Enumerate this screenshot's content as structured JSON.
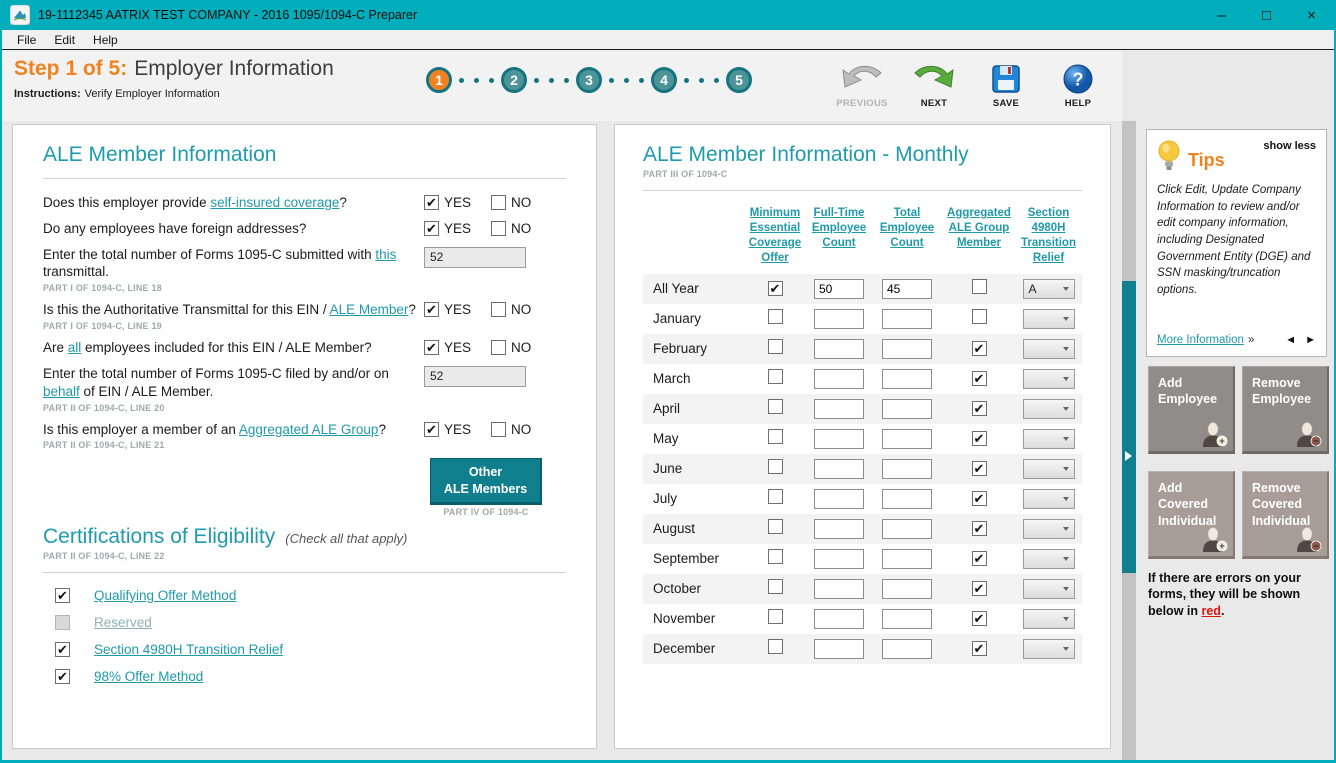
{
  "window": {
    "title": "19-1112345 AATRIX TEST COMPANY - 2016 1095/1094-C Preparer",
    "controls": {
      "minimize": "–",
      "maximize": "□",
      "close": "×"
    }
  },
  "menu": {
    "items": [
      "File",
      "Edit",
      "Help"
    ]
  },
  "header": {
    "step_prefix": "Step 1 of 5:",
    "step_title": "Employer Information",
    "instructions_label": "Instructions:",
    "instructions_text": "Verify Employer Information",
    "wizard_steps": [
      {
        "label": "1",
        "active": true
      },
      {
        "label": "2",
        "active": false
      },
      {
        "label": "3",
        "active": false
      },
      {
        "label": "4",
        "active": false
      },
      {
        "label": "5",
        "active": false
      }
    ],
    "nav": {
      "previous": "PREVIOUS",
      "next": "NEXT",
      "save": "SAVE",
      "help": "HELP"
    }
  },
  "left_panel": {
    "title": "ALE Member Information",
    "yes_label": "YES",
    "no_label": "NO",
    "questions": [
      {
        "type": "yesno",
        "yes": true,
        "no": false,
        "segments": [
          {
            "text": "Does this employer provide "
          },
          {
            "text": "self-insured coverage",
            "link": true
          },
          {
            "text": "?"
          }
        ]
      },
      {
        "type": "yesno",
        "yes": true,
        "no": false,
        "segments": [
          {
            "text": "Do any employees have foreign addresses?"
          }
        ]
      },
      {
        "type": "input",
        "value": "52",
        "caption": "PART I OF 1094-C, LINE 18",
        "segments": [
          {
            "text": "Enter the total number of Forms 1095-C submitted with "
          },
          {
            "text": "this",
            "link": true
          },
          {
            "text": " transmittal."
          }
        ]
      },
      {
        "type": "yesno",
        "yes": true,
        "no": false,
        "caption": "PART I OF 1094-C, LINE 19",
        "segments": [
          {
            "text": "Is this the Authoritative Transmittal for this EIN / "
          },
          {
            "text": "ALE Member",
            "link": true
          },
          {
            "text": "?"
          }
        ]
      },
      {
        "type": "yesno",
        "yes": true,
        "no": false,
        "segments": [
          {
            "text": "Are "
          },
          {
            "text": "all",
            "link": true
          },
          {
            "text": " employees included for this EIN / ALE Member?"
          }
        ]
      },
      {
        "type": "input",
        "value": "52",
        "caption": "PART II OF 1094-C, LINE 20",
        "segments": [
          {
            "text": "Enter the total number of Forms 1095-C filed by and/or on "
          },
          {
            "text": "behalf",
            "link": true
          },
          {
            "text": " of EIN / ALE Member."
          }
        ]
      },
      {
        "type": "yesno",
        "yes": true,
        "no": false,
        "caption": "PART II OF 1094-C, LINE 21",
        "segments": [
          {
            "text": "Is this employer a member of an "
          },
          {
            "text": "Aggregated ALE Group",
            "link": true
          },
          {
            "text": "?"
          }
        ]
      }
    ],
    "other_members_button": {
      "line1": "Other",
      "line2": "ALE Members",
      "caption": "PART IV OF 1094-C"
    },
    "certifications": {
      "title": "Certifications of Eligibility",
      "subtitle": "(Check all that apply)",
      "caption": "PART II OF 1094-C, LINE 22",
      "items": [
        {
          "label": "Qualifying Offer Method",
          "checked": true,
          "disabled": false
        },
        {
          "label": "Reserved",
          "checked": false,
          "disabled": true
        },
        {
          "label": "Section 4980H Transition Relief",
          "checked": true,
          "disabled": false
        },
        {
          "label": "98% Offer Method",
          "checked": true,
          "disabled": false
        }
      ]
    }
  },
  "right_panel": {
    "title": "ALE Member Information - Monthly",
    "caption": "PART III OF 1094-C",
    "columns": [
      "Minimum Essential Coverage Offer",
      "Full-Time Employee Count",
      "Total Employee Count",
      "Aggregated ALE Group Member",
      "Section 4980H Transition Relief"
    ],
    "rows": [
      {
        "month": "All Year",
        "mec": true,
        "full_time": "50",
        "total": "45",
        "agg": false,
        "relief": "A"
      },
      {
        "month": "January",
        "mec": false,
        "full_time": "",
        "total": "",
        "agg": false,
        "relief": ""
      },
      {
        "month": "February",
        "mec": false,
        "full_time": "",
        "total": "",
        "agg": true,
        "relief": ""
      },
      {
        "month": "March",
        "mec": false,
        "full_time": "",
        "total": "",
        "agg": true,
        "relief": ""
      },
      {
        "month": "April",
        "mec": false,
        "full_time": "",
        "total": "",
        "agg": true,
        "relief": ""
      },
      {
        "month": "May",
        "mec": false,
        "full_time": "",
        "total": "",
        "agg": true,
        "relief": ""
      },
      {
        "month": "June",
        "mec": false,
        "full_time": "",
        "total": "",
        "agg": true,
        "relief": ""
      },
      {
        "month": "July",
        "mec": false,
        "full_time": "",
        "total": "",
        "agg": true,
        "relief": ""
      },
      {
        "month": "August",
        "mec": false,
        "full_time": "",
        "total": "",
        "agg": true,
        "relief": ""
      },
      {
        "month": "September",
        "mec": false,
        "full_time": "",
        "total": "",
        "agg": true,
        "relief": ""
      },
      {
        "month": "October",
        "mec": false,
        "full_time": "",
        "total": "",
        "agg": true,
        "relief": ""
      },
      {
        "month": "November",
        "mec": false,
        "full_time": "",
        "total": "",
        "agg": true,
        "relief": ""
      },
      {
        "month": "December",
        "mec": false,
        "full_time": "",
        "total": "",
        "agg": true,
        "relief": ""
      }
    ]
  },
  "sidebar": {
    "tips": {
      "title": "Tips",
      "toggle": "show less",
      "body": "Click Edit, Update Company Information to review and/or edit company information, including Designated Government Entity (DGE) and SSN masking/truncation options.",
      "more_link": "More Information",
      "more_suffix": "»",
      "prev_arrow": "◄",
      "next_arrow": "►"
    },
    "buttons": [
      {
        "label": "Add Employee",
        "variant": "gray",
        "icon": "person-plus"
      },
      {
        "label": "Remove Employee",
        "variant": "gray",
        "icon": "person-minus"
      },
      {
        "label": "Add Covered Individual",
        "variant": "taupe",
        "icon": "person-plus"
      },
      {
        "label": "Remove Covered Individual",
        "variant": "taupe",
        "icon": "person-minus"
      }
    ],
    "error_note": {
      "before": "If there are errors on your forms, they will be shown below in ",
      "highlight": "red",
      "after": "."
    }
  },
  "colors": {
    "titlebar_teal": "#00adbb",
    "heading_teal": "#1f9bad",
    "link_teal": "#1f9aaa",
    "button_teal": "#0f7f8d",
    "accent_orange": "#f0831e",
    "active_step_orange": "#f28122",
    "error_red": "#e01313"
  }
}
